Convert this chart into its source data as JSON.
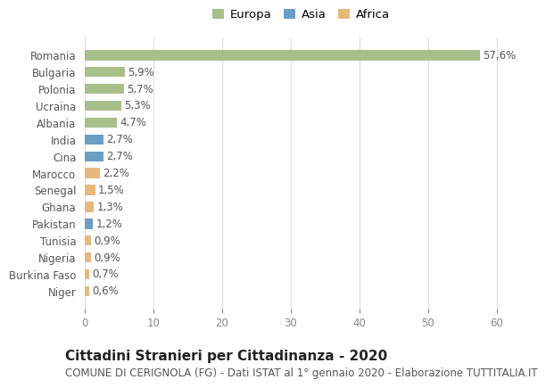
{
  "countries": [
    "Romania",
    "Bulgaria",
    "Polonia",
    "Ucraina",
    "Albania",
    "India",
    "Cina",
    "Marocco",
    "Senegal",
    "Ghana",
    "Pakistan",
    "Tunisia",
    "Nigeria",
    "Burkina Faso",
    "Niger"
  ],
  "values": [
    57.6,
    5.9,
    5.7,
    5.3,
    4.7,
    2.7,
    2.7,
    2.2,
    1.5,
    1.3,
    1.2,
    0.9,
    0.9,
    0.7,
    0.6
  ],
  "labels": [
    "57,6%",
    "5,9%",
    "5,7%",
    "5,3%",
    "4,7%",
    "2,7%",
    "2,7%",
    "2,2%",
    "1,5%",
    "1,3%",
    "1,2%",
    "0,9%",
    "0,9%",
    "0,7%",
    "0,6%"
  ],
  "continents": [
    "Europa",
    "Europa",
    "Europa",
    "Europa",
    "Europa",
    "Asia",
    "Asia",
    "Africa",
    "Africa",
    "Africa",
    "Asia",
    "Africa",
    "Africa",
    "Africa",
    "Africa"
  ],
  "colors": {
    "Europa": "#a8bf8a",
    "Asia": "#6a9ec5",
    "Africa": "#e8b87a"
  },
  "legend_items": [
    "Europa",
    "Asia",
    "Africa"
  ],
  "legend_colors": [
    "#a8bf8a",
    "#6a9ec5",
    "#e8b87a"
  ],
  "xlim": [
    0,
    63
  ],
  "xticks": [
    0,
    10,
    20,
    30,
    40,
    50,
    60
  ],
  "title": "Cittadini Stranieri per Cittadinanza - 2020",
  "subtitle": "COMUNE DI CERIGNOLA (FG) - Dati ISTAT al 1° gennaio 2020 - Elaborazione TUTTITALIA.IT",
  "background_color": "#ffffff",
  "grid_color": "#dddddd",
  "bar_height": 0.6,
  "label_fontsize": 8.5,
  "tick_fontsize": 8.5,
  "title_fontsize": 11,
  "subtitle_fontsize": 8.5
}
